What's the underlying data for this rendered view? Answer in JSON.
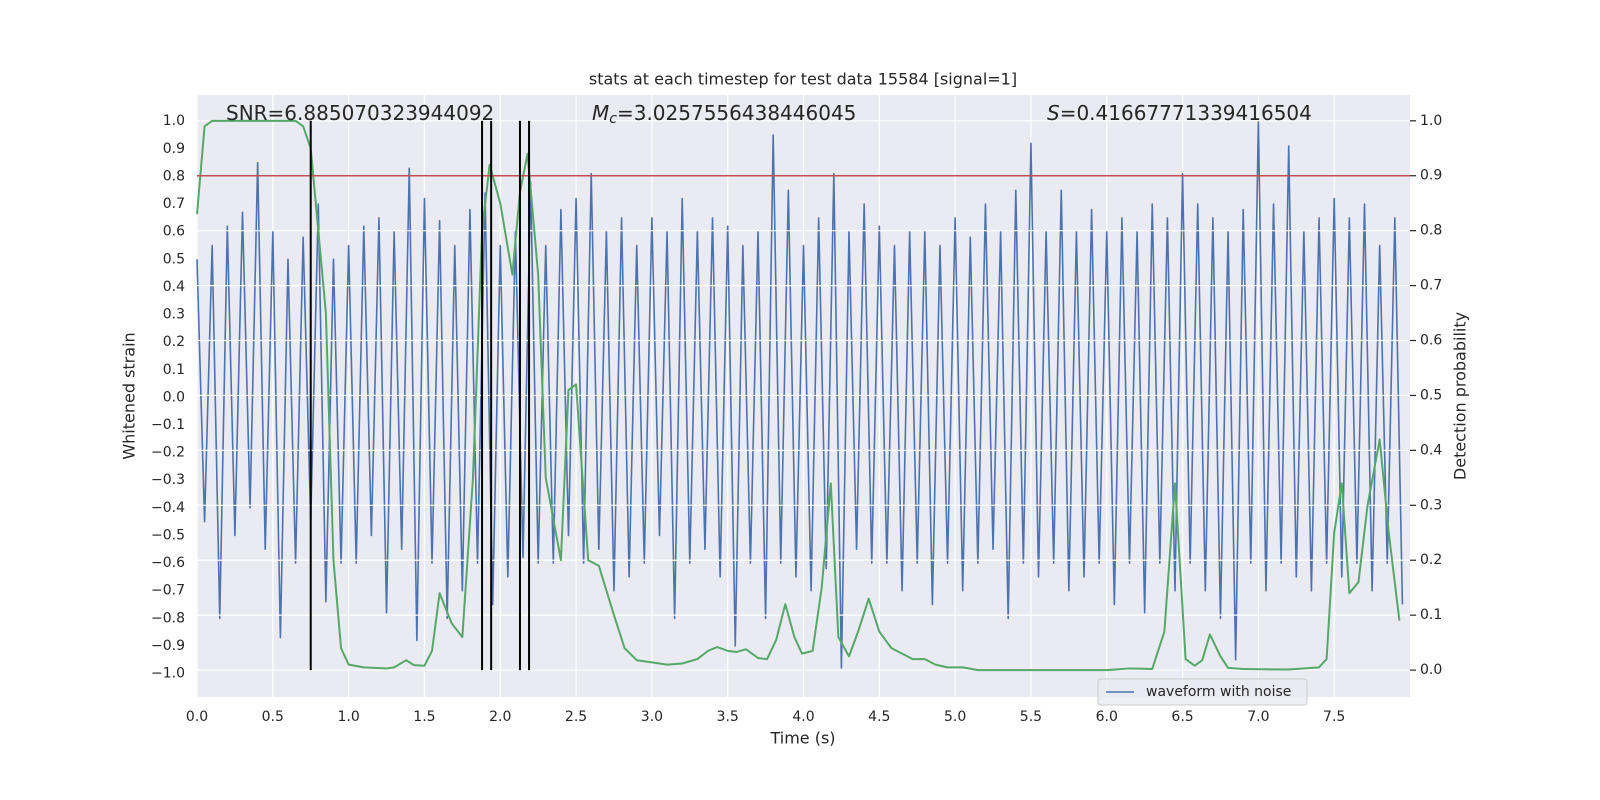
{
  "chart_data": {
    "type": "line",
    "title": "stats at each timestep for test data 15584 [signal=1]",
    "xlabel": "Time (s)",
    "ylabel": "Whitened strain",
    "y2label": "Detection probability",
    "grid": true,
    "legend_loc": "lower right",
    "xlim": [
      0,
      8
    ],
    "xticks": [
      {
        "value": 0,
        "label": "0.0"
      },
      0.5,
      {
        "value": 1,
        "label": "1.0"
      },
      1.5,
      {
        "value": 2,
        "label": "2.0"
      },
      2.5,
      {
        "value": 3,
        "label": "3.0"
      },
      3.5,
      {
        "value": 4,
        "label": "4.0"
      },
      4.5,
      {
        "value": 5,
        "label": "5.0"
      },
      5.5,
      {
        "value": 6,
        "label": "6.0"
      },
      6.5,
      {
        "value": 7,
        "label": "7.0"
      },
      7.5
    ],
    "ylim": [
      -1.085,
      1.095
    ],
    "yticks": [
      {
        "value": -1,
        "label": "−1.0"
      },
      {
        "value": -0.9,
        "label": "−0.9"
      },
      {
        "value": -0.8,
        "label": "−0.8"
      },
      {
        "value": -0.7,
        "label": "−0.7"
      },
      {
        "value": -0.6,
        "label": "−0.6"
      },
      {
        "value": -0.5,
        "label": "−0.5"
      },
      {
        "value": -0.4,
        "label": "−0.4"
      },
      {
        "value": -0.3,
        "label": "−0.3"
      },
      {
        "value": -0.2,
        "label": "−0.2"
      },
      {
        "value": -0.1,
        "label": "−0.1"
      },
      {
        "value": 0,
        "label": "0.0"
      },
      0.1,
      0.2,
      0.3,
      0.4,
      0.5,
      0.6,
      0.7,
      0.8,
      0.9,
      {
        "value": 1,
        "label": "1.0"
      }
    ],
    "y2lim": [
      -0.049,
      1.047
    ],
    "y2ticks": [
      {
        "value": 0,
        "label": "0.0"
      },
      0.1,
      0.2,
      0.3,
      0.4,
      0.5,
      0.6,
      0.7,
      0.8,
      0.9,
      {
        "value": 1,
        "label": "1.0"
      }
    ],
    "x": [
      0,
      0.05,
      0.1,
      0.15,
      0.2,
      0.25,
      0.3,
      0.35,
      0.4,
      0.45,
      0.5,
      0.55,
      0.6,
      0.65,
      0.7,
      0.75,
      0.8,
      0.85,
      0.9,
      0.95,
      1,
      1.05,
      1.1,
      1.15,
      1.2,
      1.25,
      1.3,
      1.35,
      1.4,
      1.45,
      1.5,
      1.55,
      1.6,
      1.65,
      1.7,
      1.75,
      1.8,
      1.85,
      1.9,
      1.95,
      2,
      2.05,
      2.1,
      2.15,
      2.2,
      2.25,
      2.3,
      2.35,
      2.4,
      2.45,
      2.5,
      2.55,
      2.6,
      2.65,
      2.7,
      2.75,
      2.8,
      2.85,
      2.9,
      2.95,
      3,
      3.05,
      3.1,
      3.15,
      3.2,
      3.25,
      3.3,
      3.35,
      3.4,
      3.45,
      3.5,
      3.55,
      3.6,
      3.65,
      3.7,
      3.75,
      3.8,
      3.85,
      3.9,
      3.95,
      4,
      4.05,
      4.1,
      4.15,
      4.2,
      4.25,
      4.3,
      4.35,
      4.4,
      4.45,
      4.5,
      4.55,
      4.6,
      4.65,
      4.7,
      4.75,
      4.8,
      4.85,
      4.9,
      4.95,
      5,
      5.05,
      5.1,
      5.15,
      5.2,
      5.25,
      5.3,
      5.35,
      5.4,
      5.45,
      5.5,
      5.55,
      5.6,
      5.65,
      5.7,
      5.75,
      5.8,
      5.85,
      5.9,
      5.95,
      6,
      6.05,
      6.1,
      6.15,
      6.2,
      6.25,
      6.3,
      6.35,
      6.4,
      6.45,
      6.5,
      6.55,
      6.6,
      6.65,
      6.7,
      6.75,
      6.8,
      6.85,
      6.9,
      6.95,
      7,
      7.05,
      7.1,
      7.15,
      7.2,
      7.25,
      7.3,
      7.35,
      7.4,
      7.45,
      7.5,
      7.55,
      7.6,
      7.65,
      7.7,
      7.75,
      7.8,
      7.85,
      7.9,
      7.95
    ],
    "series": [
      {
        "name": "waveform with noise",
        "color": "#4c72b0",
        "values": [
          0.5,
          -0.45,
          0.55,
          -0.8,
          0.62,
          -0.5,
          0.67,
          -0.4,
          0.85,
          -0.55,
          0.6,
          -0.87,
          0.5,
          -0.6,
          0.58,
          -0.45,
          0.7,
          -0.74,
          0.5,
          -0.6,
          0.55,
          -0.6,
          0.62,
          -0.5,
          0.65,
          -0.78,
          0.6,
          -0.55,
          0.83,
          -0.88,
          0.72,
          -0.6,
          0.64,
          -0.8,
          0.55,
          -0.7,
          0.68,
          -0.6,
          0.74,
          -0.75,
          0.55,
          -0.65,
          0.6,
          -0.58,
          0.78,
          -0.6,
          0.55,
          -0.6,
          0.68,
          -0.5,
          0.72,
          -0.6,
          0.81,
          -0.55,
          0.6,
          -0.7,
          0.65,
          -0.65,
          0.55,
          -0.6,
          0.65,
          -0.5,
          0.6,
          -0.8,
          0.72,
          -0.6,
          0.6,
          -0.55,
          0.65,
          -0.65,
          0.62,
          -0.9,
          0.55,
          -0.6,
          0.6,
          -0.8,
          0.95,
          -0.6,
          0.75,
          -0.65,
          0.55,
          -0.7,
          0.65,
          -0.62,
          0.81,
          -0.98,
          0.6,
          -0.55,
          0.7,
          -0.6,
          0.62,
          -0.6,
          0.55,
          -0.7,
          0.6,
          -0.6,
          0.6,
          -0.75,
          0.55,
          -0.6,
          0.65,
          -0.7,
          0.58,
          -0.6,
          0.7,
          -0.55,
          0.6,
          -0.8,
          0.75,
          -0.6,
          0.92,
          -0.65,
          0.6,
          -0.6,
          0.75,
          -0.7,
          0.6,
          -0.65,
          0.68,
          -0.6,
          0.6,
          -0.75,
          0.65,
          -0.6,
          0.6,
          -0.78,
          0.7,
          -0.6,
          0.65,
          -0.7,
          0.81,
          -0.6,
          0.7,
          -0.7,
          0.65,
          -0.8,
          0.6,
          -0.95,
          0.68,
          -0.6,
          1.0,
          -0.7,
          0.7,
          -0.6,
          0.91,
          -0.65,
          0.6,
          -0.7,
          0.65,
          -0.6,
          0.72,
          -0.65,
          0.65,
          -0.6,
          0.7,
          -0.7,
          0.55,
          -0.6,
          0.65,
          -0.75
        ]
      },
      {
        "color": "#55a868",
        "axis": "y2",
        "x": [
          0,
          0.05,
          0.1,
          0.65,
          0.7,
          0.75,
          0.85,
          0.9,
          0.95,
          1,
          1.1,
          1.25,
          1.3,
          1.38,
          1.43,
          1.5,
          1.55,
          1.6,
          1.68,
          1.75,
          1.82,
          1.88,
          1.93,
          2,
          2.08,
          2.13,
          2.18,
          2.25,
          2.3,
          2.4,
          2.45,
          2.5,
          2.58,
          2.65,
          2.75,
          2.82,
          2.9,
          3,
          3.1,
          3.2,
          3.3,
          3.37,
          3.43,
          3.5,
          3.56,
          3.62,
          3.7,
          3.76,
          3.82,
          3.88,
          3.94,
          3.99,
          4.06,
          4.12,
          4.18,
          4.23,
          4.3,
          4.36,
          4.43,
          4.5,
          4.58,
          4.65,
          4.72,
          4.8,
          4.87,
          4.95,
          5.05,
          5.15,
          6,
          6.15,
          6.3,
          6.38,
          6.45,
          6.52,
          6.58,
          6.63,
          6.68,
          6.75,
          6.8,
          6.9,
          7.2,
          7.4,
          7.45,
          7.5,
          7.55,
          7.6,
          7.66,
          7.72,
          7.8,
          7.86,
          7.93
        ],
        "values": [
          0.83,
          0.99,
          1,
          1,
          0.99,
          0.95,
          0.65,
          0.2,
          0.04,
          0.01,
          0.005,
          0.003,
          0.005,
          0.018,
          0.009,
          0.008,
          0.035,
          0.14,
          0.085,
          0.06,
          0.35,
          0.8,
          0.92,
          0.85,
          0.72,
          0.87,
          0.94,
          0.72,
          0.35,
          0.2,
          0.51,
          0.52,
          0.2,
          0.19,
          0.1,
          0.04,
          0.018,
          0.014,
          0.01,
          0.012,
          0.02,
          0.035,
          0.042,
          0.035,
          0.033,
          0.038,
          0.022,
          0.02,
          0.055,
          0.12,
          0.06,
          0.03,
          0.035,
          0.15,
          0.34,
          0.06,
          0.025,
          0.07,
          0.13,
          0.07,
          0.04,
          0.03,
          0.02,
          0.02,
          0.01,
          0.005,
          0.005,
          0,
          0,
          0.003,
          0.002,
          0.07,
          0.34,
          0.02,
          0.008,
          0.018,
          0.065,
          0.025,
          0.004,
          0.002,
          0.001,
          0.005,
          0.02,
          0.25,
          0.34,
          0.14,
          0.16,
          0.3,
          0.42,
          0.25,
          0.09
        ]
      }
    ],
    "hline": {
      "value": 0.9,
      "axis": "y2",
      "color": "#c44e52"
    },
    "vlines": {
      "x": [
        0.75,
        1.88,
        1.94,
        2.13,
        2.19
      ],
      "ymin": 0,
      "ymax": 1,
      "axis": "y2",
      "color": "#000000"
    },
    "annotations": [
      {
        "text": "SNR=6.885070323944092"
      },
      {
        "symbol": "M",
        "subscript": "c",
        "text": "=3.0257556438446045"
      },
      {
        "symbol": "S",
        "text": "=0.41667771339416504"
      }
    ]
  }
}
